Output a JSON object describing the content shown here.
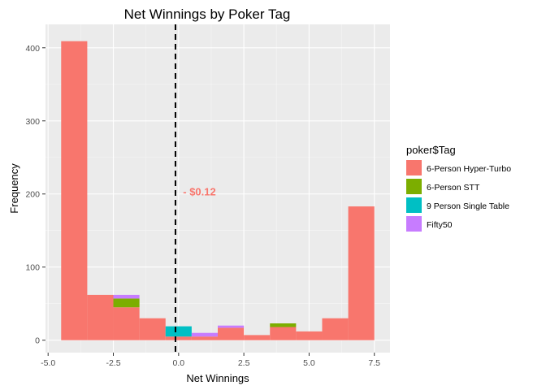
{
  "chart_data": {
    "type": "bar",
    "title": "Net Winnings by Poker Tag",
    "xlabel": "Net Winnings",
    "ylabel": "Frequency",
    "xlim": [
      -5.1,
      8.1
    ],
    "ylim": [
      -17,
      432
    ],
    "x_ticks": [
      -5.0,
      -2.5,
      0.0,
      2.5,
      5.0,
      7.5
    ],
    "x_tick_labels": [
      "-5.0",
      "-2.5",
      "0.0",
      "2.5",
      "5.0",
      "7.5"
    ],
    "y_ticks": [
      0,
      100,
      200,
      300,
      400
    ],
    "y_tick_labels": [
      "0",
      "100",
      "200",
      "300",
      "400"
    ],
    "grid": true,
    "stacked": true,
    "bin_edges": [
      -4.5,
      -3.5,
      -2.5,
      -1.5,
      -0.5,
      0.5,
      1.5,
      2.5,
      3.5,
      4.5,
      5.5,
      6.5,
      7.5
    ],
    "legend": {
      "title": "poker$Tag",
      "position": "right"
    },
    "series": [
      {
        "name": "6-Person Hyper-Turbo",
        "color": "#F8766D",
        "values": [
          409,
          62,
          45,
          30,
          5,
          5,
          17,
          7,
          18,
          12,
          30,
          183
        ]
      },
      {
        "name": "6-Person STT",
        "color": "#7CAE00",
        "values": [
          0,
          0,
          12,
          0,
          0,
          0,
          0,
          0,
          5,
          0,
          0,
          0
        ]
      },
      {
        "name": "9 Person Single Table",
        "color": "#00BFC4",
        "values": [
          0,
          0,
          0,
          0,
          14,
          0,
          0,
          0,
          0,
          0,
          0,
          0
        ]
      },
      {
        "name": "Fifty50",
        "color": "#C77CFF",
        "values": [
          0,
          0,
          5,
          0,
          0,
          5,
          3,
          0,
          0,
          0,
          0,
          0
        ]
      }
    ],
    "vline": {
      "x": -0.12,
      "style": "dashed",
      "color": "#000000"
    },
    "annotation": {
      "text": "- $0.12",
      "x": 0.8,
      "y": 198,
      "color": "#F8766D"
    }
  }
}
